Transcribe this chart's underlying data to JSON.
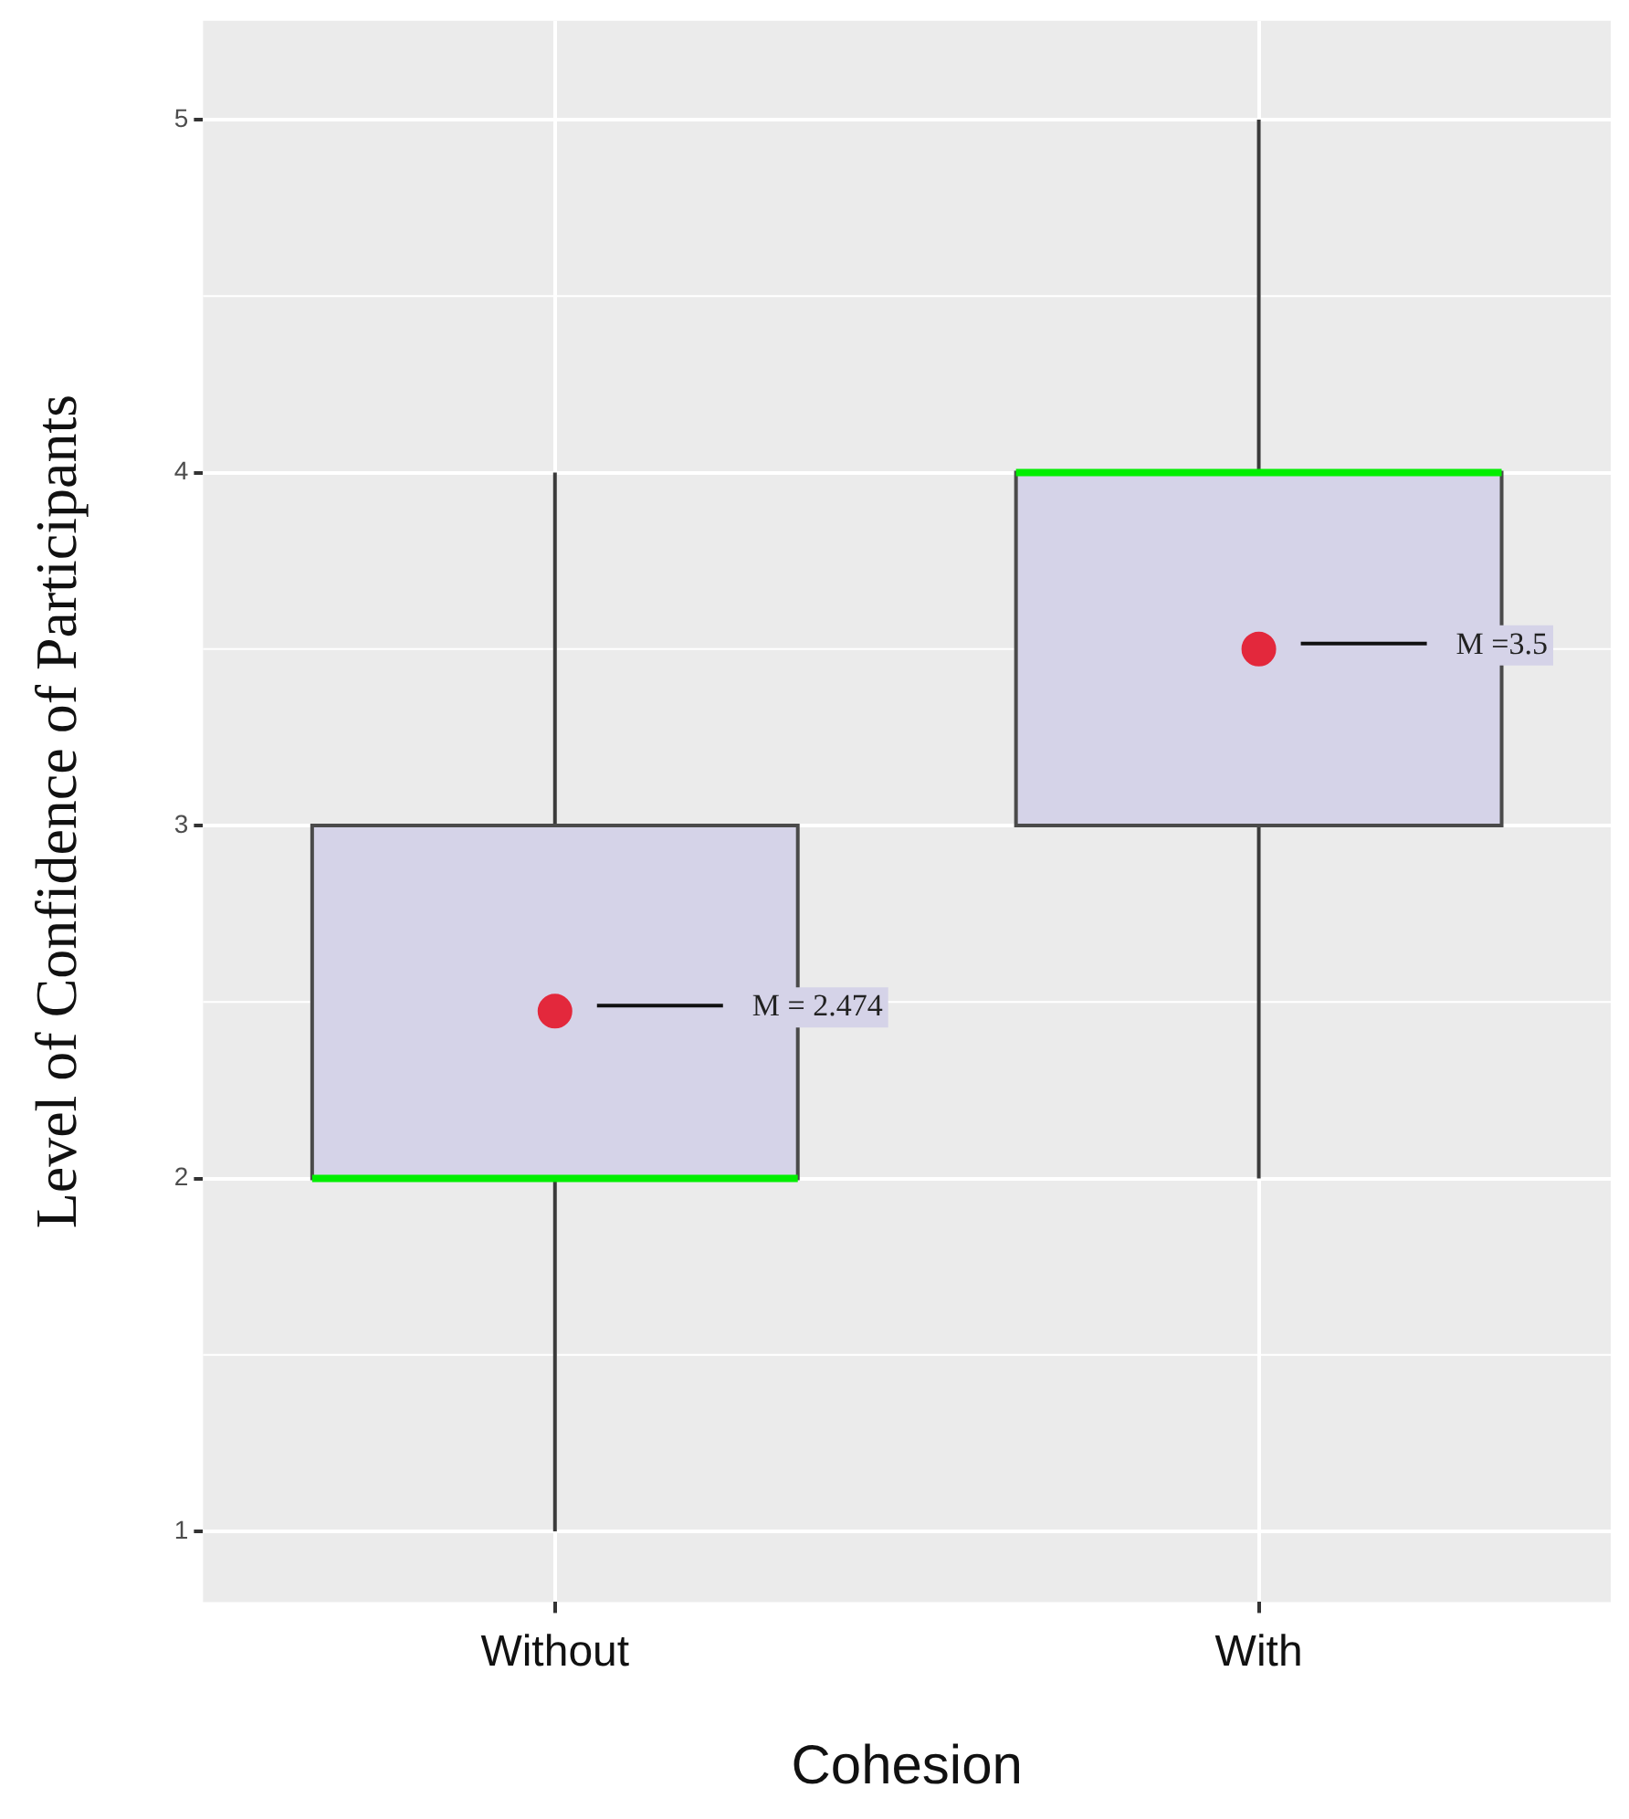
{
  "chart_data": {
    "type": "box",
    "xlabel": "Cohesion",
    "ylabel": "Level of Confidence of Participants",
    "categories": [
      "Without",
      "With"
    ],
    "series": [
      {
        "color": "#d5d3e8",
        "boxes": [
          {
            "low": 1,
            "q1": 2,
            "median": 2,
            "q3": 3,
            "high": 4,
            "mean": 2.474
          },
          {
            "low": 2,
            "q1": 3,
            "median": 4,
            "q3": 4,
            "high": 5,
            "mean": 3.5
          }
        ]
      }
    ],
    "ylim": [
      0.8,
      5.28
    ],
    "yticks": [
      1,
      2,
      3,
      4,
      5
    ],
    "grid": true,
    "annotations": [
      "M = 2.474",
      "M =3.5"
    ]
  }
}
